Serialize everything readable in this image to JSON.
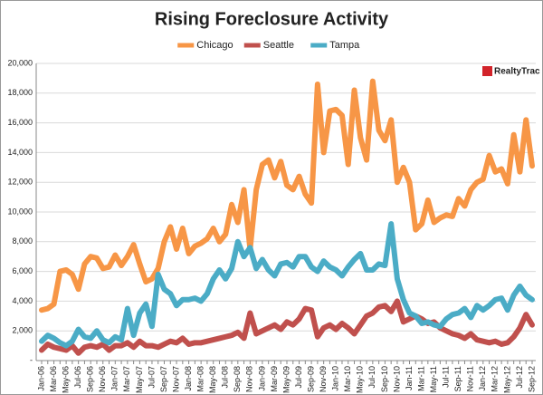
{
  "chart_data": {
    "type": "line",
    "title": "Rising Foreclosure Activity",
    "logo": "RealtyTrac",
    "categories": [
      "Jan-06",
      null,
      "Mar-06",
      null,
      "May-06",
      null,
      "Jul-06",
      null,
      "Sep-06",
      null,
      "Nov-06",
      null,
      "Jan-07",
      null,
      "Mar-07",
      null,
      "May-07",
      null,
      "Jul-07",
      null,
      "Sep-07",
      null,
      "Nov-07",
      null,
      "Jan-08",
      null,
      "Mar-08",
      null,
      "May-08",
      null,
      "Jul-08",
      null,
      "Sep-08",
      null,
      "Nov-08",
      null,
      "Jan-09",
      null,
      "Mar-09",
      null,
      "May-09",
      null,
      "Jul-09",
      null,
      "Sep-09",
      null,
      "Nov-09",
      null,
      "Jan-10",
      null,
      "Mar-10",
      null,
      "May-10",
      null,
      "Jul-10",
      null,
      "Sep-10",
      null,
      "Nov-10",
      null,
      "Jan-11",
      null,
      "Mar-11",
      null,
      "May-11",
      null,
      "Jul-11",
      null,
      "Sep-11",
      null,
      "Nov-11",
      null,
      "Jan-12",
      null,
      "Mar-12",
      null,
      "May-12",
      null,
      "Jul-12",
      null,
      "Sep-12"
    ],
    "series": [
      {
        "name": "Chicago",
        "color": "#f79646",
        "values": [
          3400,
          3500,
          3800,
          6000,
          6100,
          5800,
          4800,
          6500,
          7000,
          6900,
          6200,
          6300,
          7100,
          6400,
          7000,
          7800,
          6500,
          5300,
          5500,
          6200,
          8000,
          9000,
          7500,
          8900,
          7200,
          7700,
          7900,
          8200,
          8900,
          8000,
          8500,
          10500,
          9300,
          11500,
          7500,
          11500,
          13200,
          13500,
          12300,
          13400,
          11800,
          11500,
          12400,
          11200,
          10600,
          18600,
          14000,
          16800,
          16900,
          16500,
          13200,
          18200,
          15000,
          13500,
          18800,
          15500,
          14800,
          16200,
          12000,
          13000,
          12000,
          8800,
          9200,
          10800,
          9300,
          9600,
          9800,
          9700,
          10900,
          10400,
          11500,
          12000,
          12200,
          13800,
          12700,
          12900,
          11900,
          15200,
          12700,
          16200,
          13100
        ]
      },
      {
        "name": "Seattle",
        "color": "#c0504d",
        "values": [
          700,
          1100,
          900,
          800,
          700,
          1000,
          500,
          900,
          1000,
          900,
          1100,
          700,
          1000,
          1000,
          1200,
          900,
          1300,
          1000,
          1000,
          900,
          1100,
          1300,
          1200,
          1500,
          1100,
          1200,
          1200,
          1300,
          1400,
          1500,
          1600,
          1700,
          1900,
          1500,
          3200,
          1800,
          2000,
          2200,
          2400,
          2100,
          2600,
          2400,
          2800,
          3500,
          3400,
          1600,
          2200,
          2400,
          2100,
          2500,
          2200,
          1800,
          2400,
          3000,
          3200,
          3600,
          3700,
          3300,
          4000,
          2600,
          2800,
          3000,
          2800,
          2500,
          2600,
          2200,
          2000,
          1800,
          1700,
          1500,
          1800,
          1400,
          1300,
          1200,
          1300,
          1100,
          1200,
          1600,
          2200,
          3100,
          2400
        ]
      },
      {
        "name": "Tampa",
        "color": "#4bacc6",
        "values": [
          1300,
          1700,
          1500,
          1200,
          1000,
          1300,
          2100,
          1600,
          1500,
          2000,
          1400,
          1200,
          1600,
          1400,
          3500,
          1700,
          3200,
          3800,
          2300,
          5800,
          4800,
          4500,
          3700,
          4100,
          4100,
          4200,
          4000,
          4500,
          5500,
          6100,
          5500,
          6200,
          8000,
          7000,
          7600,
          6200,
          6800,
          6100,
          5700,
          6500,
          6600,
          6300,
          7000,
          7000,
          6300,
          6000,
          6700,
          6300,
          6100,
          5700,
          6300,
          6800,
          7200,
          6100,
          6100,
          6500,
          6400,
          9200,
          5500,
          4100,
          3200,
          3000,
          2500,
          2600,
          2400,
          2300,
          2800,
          3100,
          3200,
          3500,
          2900,
          3700,
          3400,
          3700,
          4100,
          4200,
          3400,
          4400,
          5000,
          4400,
          4100
        ]
      }
    ],
    "ylim": [
      0,
      20000
    ],
    "yticks": [
      {
        "value": 0,
        "label": "-"
      },
      {
        "value": 2000,
        "label": "2,000"
      },
      {
        "value": 4000,
        "label": "4,000"
      },
      {
        "value": 6000,
        "label": "6,000"
      },
      {
        "value": 8000,
        "label": "8,000"
      },
      {
        "value": 10000,
        "label": "10,000"
      },
      {
        "value": 12000,
        "label": "12,000"
      },
      {
        "value": 14000,
        "label": "14,000"
      },
      {
        "value": 16000,
        "label": "16,000"
      },
      {
        "value": 18000,
        "label": "18,000"
      },
      {
        "value": 20000,
        "label": "20,000"
      }
    ],
    "grid": true
  }
}
